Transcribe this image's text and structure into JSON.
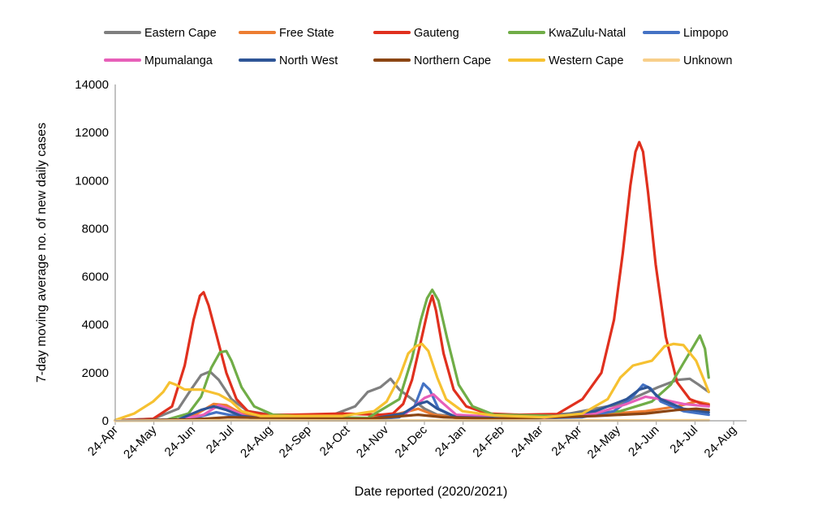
{
  "chart_data": {
    "type": "line",
    "title": "",
    "xlabel": "Date reported (2020/2021)",
    "ylabel": "7-day moving average no. of new daily cases",
    "ylim": [
      0,
      14000
    ],
    "yticks": [
      "0",
      "2000",
      "4000",
      "6000",
      "8000",
      "10000",
      "12000",
      "14000"
    ],
    "xlim": [
      0,
      500
    ],
    "xtick_labels": [
      "24-Apr",
      "24-May",
      "24-Jun",
      "24-Jul",
      "24-Aug",
      "24-Sep",
      "24-Oct",
      "24-Nov",
      "24-Dec",
      "24-Jan",
      "24-Feb",
      "24-Mar",
      "24-Apr",
      "24-May",
      "24-Jun",
      "24-Jul",
      "24-Aug"
    ],
    "legend_position": "top",
    "grid": false,
    "series": [
      {
        "name": "Eastern Cape",
        "color": "#7f7f7f",
        "points": [
          [
            0,
            20
          ],
          [
            30,
            80
          ],
          [
            50,
            500
          ],
          [
            60,
            1300
          ],
          [
            68,
            1900
          ],
          [
            75,
            2050
          ],
          [
            82,
            1700
          ],
          [
            92,
            900
          ],
          [
            105,
            400
          ],
          [
            130,
            200
          ],
          [
            170,
            200
          ],
          [
            190,
            600
          ],
          [
            200,
            1200
          ],
          [
            210,
            1400
          ],
          [
            218,
            1750
          ],
          [
            225,
            1300
          ],
          [
            235,
            900
          ],
          [
            245,
            500
          ],
          [
            255,
            250
          ],
          [
            280,
            150
          ],
          [
            330,
            200
          ],
          [
            360,
            300
          ],
          [
            400,
            700
          ],
          [
            430,
            1400
          ],
          [
            445,
            1700
          ],
          [
            455,
            1750
          ],
          [
            462,
            1500
          ],
          [
            470,
            1200
          ]
        ]
      },
      {
        "name": "Free State",
        "color": "#ed7d31",
        "points": [
          [
            0,
            5
          ],
          [
            50,
            50
          ],
          [
            65,
            300
          ],
          [
            78,
            700
          ],
          [
            88,
            650
          ],
          [
            100,
            300
          ],
          [
            120,
            100
          ],
          [
            200,
            120
          ],
          [
            225,
            300
          ],
          [
            240,
            500
          ],
          [
            252,
            250
          ],
          [
            270,
            120
          ],
          [
            330,
            130
          ],
          [
            380,
            250
          ],
          [
            420,
            400
          ],
          [
            445,
            600
          ],
          [
            460,
            800
          ],
          [
            470,
            700
          ]
        ]
      },
      {
        "name": "Gauteng",
        "color": "#e0301e",
        "points": [
          [
            0,
            10
          ],
          [
            30,
            80
          ],
          [
            45,
            600
          ],
          [
            55,
            2300
          ],
          [
            62,
            4200
          ],
          [
            67,
            5200
          ],
          [
            70,
            5350
          ],
          [
            74,
            4800
          ],
          [
            80,
            3600
          ],
          [
            88,
            2000
          ],
          [
            96,
            900
          ],
          [
            105,
            400
          ],
          [
            120,
            250
          ],
          [
            140,
            250
          ],
          [
            180,
            300
          ],
          [
            210,
            250
          ],
          [
            220,
            300
          ],
          [
            228,
            700
          ],
          [
            235,
            1700
          ],
          [
            242,
            3300
          ],
          [
            248,
            4700
          ],
          [
            251,
            5200
          ],
          [
            254,
            4600
          ],
          [
            260,
            2800
          ],
          [
            268,
            1300
          ],
          [
            278,
            600
          ],
          [
            295,
            300
          ],
          [
            320,
            250
          ],
          [
            350,
            280
          ],
          [
            370,
            900
          ],
          [
            385,
            2000
          ],
          [
            395,
            4200
          ],
          [
            402,
            7000
          ],
          [
            408,
            9800
          ],
          [
            412,
            11200
          ],
          [
            415,
            11600
          ],
          [
            418,
            11200
          ],
          [
            422,
            9500
          ],
          [
            428,
            6500
          ],
          [
            436,
            3500
          ],
          [
            445,
            1600
          ],
          [
            455,
            900
          ],
          [
            465,
            700
          ],
          [
            470,
            650
          ]
        ]
      },
      {
        "name": "KwaZulu-Natal",
        "color": "#70ad47",
        "points": [
          [
            0,
            5
          ],
          [
            40,
            30
          ],
          [
            58,
            300
          ],
          [
            68,
            1000
          ],
          [
            76,
            2200
          ],
          [
            83,
            2850
          ],
          [
            88,
            2900
          ],
          [
            92,
            2500
          ],
          [
            100,
            1400
          ],
          [
            110,
            600
          ],
          [
            125,
            250
          ],
          [
            160,
            150
          ],
          [
            200,
            120
          ],
          [
            225,
            900
          ],
          [
            235,
            2600
          ],
          [
            242,
            4200
          ],
          [
            247,
            5100
          ],
          [
            251,
            5450
          ],
          [
            256,
            5000
          ],
          [
            263,
            3400
          ],
          [
            272,
            1500
          ],
          [
            283,
            600
          ],
          [
            300,
            250
          ],
          [
            350,
            200
          ],
          [
            400,
            400
          ],
          [
            425,
            800
          ],
          [
            440,
            1500
          ],
          [
            450,
            2400
          ],
          [
            458,
            3100
          ],
          [
            463,
            3550
          ],
          [
            467,
            3000
          ],
          [
            470,
            1800
          ]
        ]
      },
      {
        "name": "Limpopo",
        "color": "#4472c4",
        "points": [
          [
            0,
            5
          ],
          [
            50,
            50
          ],
          [
            65,
            150
          ],
          [
            80,
            350
          ],
          [
            90,
            250
          ],
          [
            110,
            100
          ],
          [
            200,
            50
          ],
          [
            225,
            150
          ],
          [
            237,
            600
          ],
          [
            244,
            1550
          ],
          [
            249,
            1300
          ],
          [
            256,
            500
          ],
          [
            270,
            150
          ],
          [
            330,
            100
          ],
          [
            370,
            150
          ],
          [
            395,
            400
          ],
          [
            408,
            900
          ],
          [
            418,
            1500
          ],
          [
            424,
            1350
          ],
          [
            432,
            800
          ],
          [
            450,
            400
          ],
          [
            470,
            250
          ]
        ]
      },
      {
        "name": "Mpumalanga",
        "color": "#e75fb9",
        "points": [
          [
            0,
            5
          ],
          [
            50,
            30
          ],
          [
            70,
            250
          ],
          [
            82,
            650
          ],
          [
            90,
            500
          ],
          [
            105,
            150
          ],
          [
            200,
            50
          ],
          [
            230,
            300
          ],
          [
            245,
            950
          ],
          [
            252,
            1100
          ],
          [
            258,
            800
          ],
          [
            270,
            250
          ],
          [
            330,
            80
          ],
          [
            380,
            300
          ],
          [
            405,
            700
          ],
          [
            420,
            1000
          ],
          [
            432,
            900
          ],
          [
            450,
            700
          ],
          [
            470,
            600
          ]
        ]
      },
      {
        "name": "North West",
        "color": "#2e5597",
        "points": [
          [
            0,
            5
          ],
          [
            50,
            50
          ],
          [
            68,
            450
          ],
          [
            78,
            600
          ],
          [
            88,
            450
          ],
          [
            100,
            200
          ],
          [
            120,
            80
          ],
          [
            200,
            60
          ],
          [
            228,
            300
          ],
          [
            240,
            700
          ],
          [
            247,
            800
          ],
          [
            255,
            500
          ],
          [
            270,
            150
          ],
          [
            330,
            80
          ],
          [
            380,
            400
          ],
          [
            405,
            900
          ],
          [
            415,
            1300
          ],
          [
            422,
            1400
          ],
          [
            432,
            900
          ],
          [
            450,
            500
          ],
          [
            470,
            350
          ]
        ]
      },
      {
        "name": "Northern Cape",
        "color": "#8b4513",
        "points": [
          [
            0,
            5
          ],
          [
            60,
            50
          ],
          [
            90,
            150
          ],
          [
            120,
            120
          ],
          [
            200,
            80
          ],
          [
            240,
            250
          ],
          [
            260,
            150
          ],
          [
            300,
            80
          ],
          [
            380,
            200
          ],
          [
            420,
            300
          ],
          [
            445,
            450
          ],
          [
            460,
            500
          ],
          [
            470,
            450
          ]
        ]
      },
      {
        "name": "Western Cape",
        "color": "#f6c131",
        "points": [
          [
            0,
            30
          ],
          [
            15,
            300
          ],
          [
            30,
            800
          ],
          [
            38,
            1200
          ],
          [
            43,
            1600
          ],
          [
            48,
            1500
          ],
          [
            55,
            1300
          ],
          [
            68,
            1300
          ],
          [
            82,
            1100
          ],
          [
            92,
            800
          ],
          [
            100,
            400
          ],
          [
            115,
            200
          ],
          [
            140,
            200
          ],
          [
            180,
            200
          ],
          [
            205,
            400
          ],
          [
            215,
            800
          ],
          [
            225,
            1800
          ],
          [
            232,
            2800
          ],
          [
            238,
            3100
          ],
          [
            243,
            3200
          ],
          [
            248,
            2900
          ],
          [
            255,
            1800
          ],
          [
            262,
            900
          ],
          [
            275,
            400
          ],
          [
            300,
            220
          ],
          [
            340,
            150
          ],
          [
            370,
            300
          ],
          [
            390,
            900
          ],
          [
            400,
            1800
          ],
          [
            410,
            2300
          ],
          [
            425,
            2500
          ],
          [
            435,
            3100
          ],
          [
            442,
            3200
          ],
          [
            450,
            3150
          ],
          [
            460,
            2500
          ],
          [
            467,
            1600
          ],
          [
            470,
            1200
          ]
        ]
      },
      {
        "name": "Unknown",
        "color": "#f8cf8a",
        "points": [
          [
            0,
            0
          ],
          [
            100,
            20
          ],
          [
            200,
            10
          ],
          [
            300,
            10
          ],
          [
            400,
            15
          ],
          [
            470,
            20
          ]
        ]
      }
    ]
  }
}
